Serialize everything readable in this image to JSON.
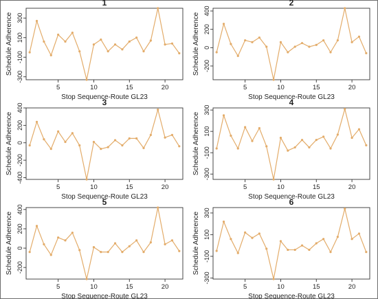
{
  "colors": {
    "series": "#E3AC6A",
    "axis": "#333333",
    "text": "#222222"
  },
  "chart_data": [
    {
      "type": "line",
      "title": "1",
      "xlabel": "Stop Sequence-Route GL23",
      "ylabel": "Schedule Adherence",
      "x": [
        1,
        2,
        3,
        4,
        5,
        6,
        7,
        8,
        9,
        10,
        11,
        12,
        13,
        14,
        15,
        16,
        17,
        18,
        19,
        20,
        21,
        22
      ],
      "series": [
        {
          "values": [
            -50,
            270,
            60,
            -80,
            130,
            60,
            150,
            -40,
            -330,
            30,
            80,
            -40,
            30,
            -20,
            60,
            100,
            -40,
            70,
            400,
            30,
            40,
            -60
          ]
        }
      ],
      "xticks": [
        5,
        10,
        15,
        20
      ],
      "yticks": [
        -300,
        -100,
        100,
        300
      ],
      "xlim": [
        0.5,
        22.5
      ],
      "ylim": [
        -330,
        400
      ]
    },
    {
      "type": "line",
      "title": "2",
      "xlabel": "Stop Sequence-Route GL23",
      "ylabel": "Schedule Adherence",
      "x": [
        1,
        2,
        3,
        4,
        5,
        6,
        7,
        8,
        9,
        10,
        11,
        12,
        13,
        14,
        15,
        16,
        17,
        18,
        19,
        20,
        21,
        22
      ],
      "series": [
        {
          "values": [
            -50,
            260,
            40,
            -90,
            80,
            60,
            110,
            10,
            -350,
            60,
            -50,
            10,
            50,
            10,
            30,
            80,
            -50,
            80,
            430,
            60,
            120,
            -60
          ]
        }
      ],
      "xticks": [
        5,
        10,
        15,
        20
      ],
      "yticks": [
        -200,
        0,
        200,
        400
      ],
      "xlim": [
        0.5,
        22.5
      ],
      "ylim": [
        -350,
        430
      ]
    },
    {
      "type": "line",
      "title": "3",
      "xlabel": "Stop Sequence-Route GL23",
      "ylabel": "Schedule Adherence",
      "x": [
        1,
        2,
        3,
        4,
        5,
        6,
        7,
        8,
        9,
        10,
        11,
        12,
        13,
        14,
        15,
        16,
        17,
        18,
        19,
        20,
        21,
        22
      ],
      "series": [
        {
          "values": [
            -30,
            240,
            40,
            -70,
            130,
            10,
            110,
            -30,
            -420,
            10,
            -70,
            -50,
            30,
            -30,
            50,
            50,
            -60,
            90,
            380,
            60,
            90,
            -40
          ]
        }
      ],
      "xticks": [
        5,
        10,
        15,
        20
      ],
      "yticks": [
        -400,
        -200,
        0,
        200,
        400
      ],
      "xlim": [
        0.5,
        22.5
      ],
      "ylim": [
        -420,
        400
      ]
    },
    {
      "type": "line",
      "title": "4",
      "xlabel": "Stop Sequence-Route GL23",
      "ylabel": "Schedule Adherence",
      "x": [
        1,
        2,
        3,
        4,
        5,
        6,
        7,
        8,
        9,
        10,
        11,
        12,
        13,
        14,
        15,
        16,
        17,
        18,
        19,
        20,
        21,
        22
      ],
      "series": [
        {
          "values": [
            -60,
            250,
            60,
            -60,
            140,
            10,
            130,
            -40,
            -350,
            40,
            -80,
            -50,
            20,
            -50,
            20,
            50,
            -60,
            70,
            310,
            40,
            120,
            -30
          ]
        }
      ],
      "xticks": [
        5,
        10,
        15,
        20
      ],
      "yticks": [
        -300,
        -100,
        100,
        300
      ],
      "xlim": [
        0.5,
        22.5
      ],
      "ylim": [
        -350,
        320
      ]
    },
    {
      "type": "line",
      "title": "5",
      "xlabel": "Stop Sequence-Route GL23",
      "ylabel": "Schedule Adherence",
      "x": [
        1,
        2,
        3,
        4,
        5,
        6,
        7,
        8,
        9,
        10,
        11,
        12,
        13,
        14,
        15,
        16,
        17,
        18,
        19,
        20,
        21,
        22
      ],
      "series": [
        {
          "values": [
            -40,
            230,
            40,
            -70,
            110,
            80,
            160,
            -20,
            -320,
            10,
            -40,
            -40,
            50,
            -40,
            20,
            80,
            -40,
            60,
            420,
            40,
            80,
            -30
          ]
        }
      ],
      "xticks": [
        5,
        10,
        15,
        20
      ],
      "yticks": [
        -200,
        0,
        200,
        400
      ],
      "xlim": [
        0.5,
        22.5
      ],
      "ylim": [
        -320,
        420
      ]
    },
    {
      "type": "line",
      "title": "6",
      "xlabel": "Stop Sequence-Route GL23",
      "ylabel": "Schedule Adherence",
      "x": [
        1,
        2,
        3,
        4,
        5,
        6,
        7,
        8,
        9,
        10,
        11,
        12,
        13,
        14,
        15,
        16,
        17,
        18,
        19,
        20,
        21,
        22
      ],
      "series": [
        {
          "values": [
            -50,
            220,
            60,
            -70,
            120,
            70,
            110,
            -30,
            -310,
            40,
            -40,
            -40,
            0,
            -40,
            20,
            60,
            -60,
            80,
            340,
            60,
            110,
            -60
          ]
        }
      ],
      "xticks": [
        5,
        10,
        15,
        20
      ],
      "yticks": [
        -300,
        -100,
        100,
        300
      ],
      "xlim": [
        0.5,
        22.5
      ],
      "ylim": [
        -310,
        350
      ]
    }
  ]
}
